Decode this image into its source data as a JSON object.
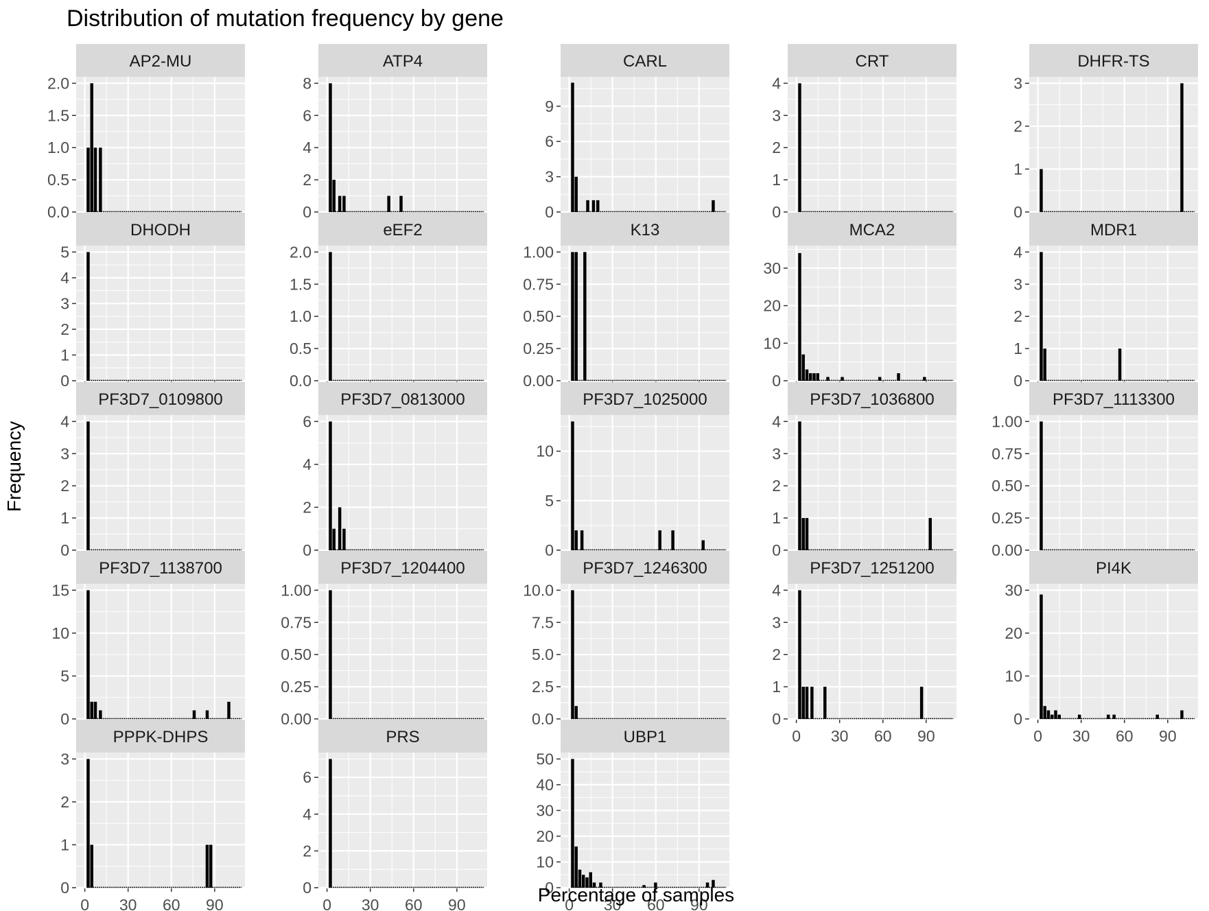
{
  "title": "Distribution of mutation frequency by gene",
  "xlabel": "Percentage of samples",
  "ylabel": "Frequency",
  "colors": {
    "panel_background": "#EBEBEB",
    "grid_major": "#FFFFFF",
    "strip_background": "#D9D9D9",
    "bar_fill": "#000000",
    "text": "#1A1A1A",
    "tick_label": "#4D4D4D"
  },
  "chart_data": {
    "type": "bar",
    "layout": "facet_wrap",
    "columns": 5,
    "x_range": [
      -6,
      111
    ],
    "x_ticks": [
      0,
      30,
      60,
      90
    ],
    "bin_width": 2.5,
    "facets": [
      {
        "gene": "AP2-MU",
        "ylim": [
          0,
          2.1
        ],
        "y_ticks": [
          0,
          0.5,
          1.0,
          1.5,
          2.0
        ],
        "y_tick_labels": [
          "0.0",
          "0.5",
          "1.0",
          "1.5",
          "2.0"
        ],
        "bars": [
          [
            2.5,
            1
          ],
          [
            5,
            2
          ],
          [
            7.5,
            1
          ],
          [
            11,
            1
          ]
        ]
      },
      {
        "gene": "ATP4",
        "ylim": [
          0,
          8.4
        ],
        "y_ticks": [
          0,
          2,
          4,
          6,
          8
        ],
        "y_tick_labels": [
          "0",
          "2",
          "4",
          "6",
          "8"
        ],
        "bars": [
          [
            2.5,
            8
          ],
          [
            5,
            2
          ],
          [
            9,
            1
          ],
          [
            12,
            1
          ],
          [
            43,
            1
          ],
          [
            51.5,
            1
          ]
        ]
      },
      {
        "gene": "CARL",
        "ylim": [
          0,
          11.5
        ],
        "y_ticks": [
          0,
          3,
          6,
          9
        ],
        "y_tick_labels": [
          "0",
          "3",
          "6",
          "9"
        ],
        "bars": [
          [
            2.5,
            11
          ],
          [
            5,
            3
          ],
          [
            13,
            1
          ],
          [
            17,
            1
          ],
          [
            20,
            1
          ],
          [
            100,
            1
          ]
        ]
      },
      {
        "gene": "CRT",
        "ylim": [
          0,
          4.2
        ],
        "y_ticks": [
          0,
          1,
          2,
          3,
          4
        ],
        "y_tick_labels": [
          "0",
          "1",
          "2",
          "3",
          "4"
        ],
        "bars": [
          [
            2.5,
            4
          ]
        ]
      },
      {
        "gene": "DHFR-TS",
        "ylim": [
          0,
          3.15
        ],
        "y_ticks": [
          0,
          1,
          2,
          3
        ],
        "y_tick_labels": [
          "0",
          "1",
          "2",
          "3"
        ],
        "bars": [
          [
            2.5,
            1
          ],
          [
            100,
            3
          ]
        ]
      },
      {
        "gene": "DHODH",
        "ylim": [
          0,
          5.25
        ],
        "y_ticks": [
          0,
          1,
          2,
          3,
          4,
          5
        ],
        "y_tick_labels": [
          "0",
          "1",
          "2",
          "3",
          "4",
          "5"
        ],
        "bars": [
          [
            2.5,
            5
          ]
        ]
      },
      {
        "gene": "eEF2",
        "ylim": [
          0,
          2.1
        ],
        "y_ticks": [
          0,
          0.5,
          1.0,
          1.5,
          2.0
        ],
        "y_tick_labels": [
          "0.0",
          "0.5",
          "1.0",
          "1.5",
          "2.0"
        ],
        "bars": [
          [
            2.5,
            2
          ]
        ]
      },
      {
        "gene": "K13",
        "ylim": [
          0,
          1.05
        ],
        "y_ticks": [
          0,
          0.25,
          0.5,
          0.75,
          1.0
        ],
        "y_tick_labels": [
          "0.00",
          "0.25",
          "0.50",
          "0.75",
          "1.00"
        ],
        "bars": [
          [
            2.5,
            1
          ],
          [
            5,
            1
          ],
          [
            11,
            1
          ]
        ]
      },
      {
        "gene": "MCA2",
        "ylim": [
          0,
          36
        ],
        "y_ticks": [
          0,
          10,
          20,
          30
        ],
        "y_tick_labels": [
          "0",
          "10",
          "20",
          "30"
        ],
        "bars": [
          [
            2.5,
            34
          ],
          [
            5,
            7
          ],
          [
            7.5,
            3
          ],
          [
            10,
            2
          ],
          [
            12.5,
            2
          ],
          [
            15,
            2
          ],
          [
            22,
            1
          ],
          [
            32,
            1
          ],
          [
            58,
            1
          ],
          [
            71,
            2
          ],
          [
            89,
            1
          ]
        ]
      },
      {
        "gene": "MDR1",
        "ylim": [
          0,
          4.2
        ],
        "y_ticks": [
          0,
          1,
          2,
          3,
          4
        ],
        "y_tick_labels": [
          "0",
          "1",
          "2",
          "3",
          "4"
        ],
        "bars": [
          [
            2.5,
            4
          ],
          [
            5,
            1
          ],
          [
            57,
            1
          ]
        ]
      },
      {
        "gene": "PF3D7_0109800",
        "ylim": [
          0,
          4.2
        ],
        "y_ticks": [
          0,
          1,
          2,
          3,
          4
        ],
        "y_tick_labels": [
          "0",
          "1",
          "2",
          "3",
          "4"
        ],
        "bars": [
          [
            2.5,
            4
          ]
        ]
      },
      {
        "gene": "PF3D7_0813000",
        "ylim": [
          0,
          6.3
        ],
        "y_ticks": [
          0,
          2,
          4,
          6
        ],
        "y_tick_labels": [
          "0",
          "2",
          "4",
          "6"
        ],
        "bars": [
          [
            2.5,
            6
          ],
          [
            5,
            1
          ],
          [
            9,
            2
          ],
          [
            12,
            1
          ]
        ]
      },
      {
        "gene": "PF3D7_1025000",
        "ylim": [
          0,
          13.65
        ],
        "y_ticks": [
          0,
          5,
          10
        ],
        "y_tick_labels": [
          "0",
          "5",
          "10"
        ],
        "bars": [
          [
            2.5,
            13
          ],
          [
            5,
            2
          ],
          [
            9,
            2
          ],
          [
            63,
            2
          ],
          [
            72,
            2
          ],
          [
            93,
            1
          ]
        ]
      },
      {
        "gene": "PF3D7_1036800",
        "ylim": [
          0,
          4.2
        ],
        "y_ticks": [
          0,
          1,
          2,
          3,
          4
        ],
        "y_tick_labels": [
          "0",
          "1",
          "2",
          "3",
          "4"
        ],
        "bars": [
          [
            2.5,
            4
          ],
          [
            5,
            1
          ],
          [
            7.5,
            1
          ],
          [
            93,
            1
          ]
        ]
      },
      {
        "gene": "PF3D7_1113300",
        "ylim": [
          0,
          1.05
        ],
        "y_ticks": [
          0,
          0.25,
          0.5,
          0.75,
          1.0
        ],
        "y_tick_labels": [
          "0.00",
          "0.25",
          "0.50",
          "0.75",
          "1.00"
        ],
        "bars": [
          [
            2.5,
            1
          ]
        ]
      },
      {
        "gene": "PF3D7_1138700",
        "ylim": [
          0,
          15.75
        ],
        "y_ticks": [
          0,
          5,
          10,
          15
        ],
        "y_tick_labels": [
          "0",
          "5",
          "10",
          "15"
        ],
        "bars": [
          [
            2.5,
            15
          ],
          [
            5,
            2
          ],
          [
            7.5,
            2
          ],
          [
            11,
            1
          ],
          [
            76,
            1
          ],
          [
            85,
            1
          ],
          [
            100,
            2
          ]
        ]
      },
      {
        "gene": "PF3D7_1204400",
        "ylim": [
          0,
          1.05
        ],
        "y_ticks": [
          0,
          0.25,
          0.5,
          0.75,
          1.0
        ],
        "y_tick_labels": [
          "0.00",
          "0.25",
          "0.50",
          "0.75",
          "1.00"
        ],
        "bars": [
          [
            2.5,
            1
          ]
        ]
      },
      {
        "gene": "PF3D7_1246300",
        "ylim": [
          0,
          10.5
        ],
        "y_ticks": [
          0,
          2.5,
          5.0,
          7.5,
          10.0
        ],
        "y_tick_labels": [
          "0.0",
          "2.5",
          "5.0",
          "7.5",
          "10.0"
        ],
        "bars": [
          [
            2.5,
            10
          ],
          [
            5,
            1
          ]
        ]
      },
      {
        "gene": "PF3D7_1251200",
        "ylim": [
          0,
          4.2
        ],
        "y_ticks": [
          0,
          1,
          2,
          3,
          4
        ],
        "y_tick_labels": [
          "0",
          "1",
          "2",
          "3",
          "4"
        ],
        "bars": [
          [
            2.5,
            4
          ],
          [
            5,
            1
          ],
          [
            7.5,
            1
          ],
          [
            11,
            1
          ],
          [
            20,
            1
          ],
          [
            87,
            1
          ]
        ]
      },
      {
        "gene": "PI4K",
        "ylim": [
          0,
          31.5
        ],
        "y_ticks": [
          0,
          10,
          20,
          30
        ],
        "y_tick_labels": [
          "0",
          "10",
          "20",
          "30"
        ],
        "bars": [
          [
            2.5,
            29
          ],
          [
            5,
            3
          ],
          [
            7.5,
            2
          ],
          [
            10,
            1
          ],
          [
            12.5,
            2
          ],
          [
            15,
            1
          ],
          [
            29,
            1
          ],
          [
            49,
            1
          ],
          [
            53,
            1
          ],
          [
            83,
            1
          ],
          [
            100,
            2
          ]
        ]
      },
      {
        "gene": "PPPK-DHPS",
        "ylim": [
          0,
          3.15
        ],
        "y_ticks": [
          0,
          1,
          2,
          3
        ],
        "y_tick_labels": [
          "0",
          "1",
          "2",
          "3"
        ],
        "bars": [
          [
            2.5,
            3
          ],
          [
            5,
            1
          ],
          [
            85,
            1
          ],
          [
            87.5,
            1
          ]
        ]
      },
      {
        "gene": "PRS",
        "ylim": [
          0,
          7.35
        ],
        "y_ticks": [
          0,
          2,
          4,
          6
        ],
        "y_tick_labels": [
          "0",
          "2",
          "4",
          "6"
        ],
        "bars": [
          [
            2.5,
            7
          ]
        ]
      },
      {
        "gene": "UBP1",
        "ylim": [
          0,
          52.5
        ],
        "y_ticks": [
          0,
          10,
          20,
          30,
          40,
          50
        ],
        "y_tick_labels": [
          "0",
          "10",
          "20",
          "30",
          "40",
          "50"
        ],
        "bars": [
          [
            2.5,
            50
          ],
          [
            5,
            16
          ],
          [
            7.5,
            7
          ],
          [
            10,
            5
          ],
          [
            12.5,
            4
          ],
          [
            15,
            6
          ],
          [
            17.5,
            2
          ],
          [
            22,
            2
          ],
          [
            52,
            1
          ],
          [
            60,
            2
          ],
          [
            96,
            2
          ],
          [
            100,
            3
          ]
        ]
      }
    ]
  }
}
